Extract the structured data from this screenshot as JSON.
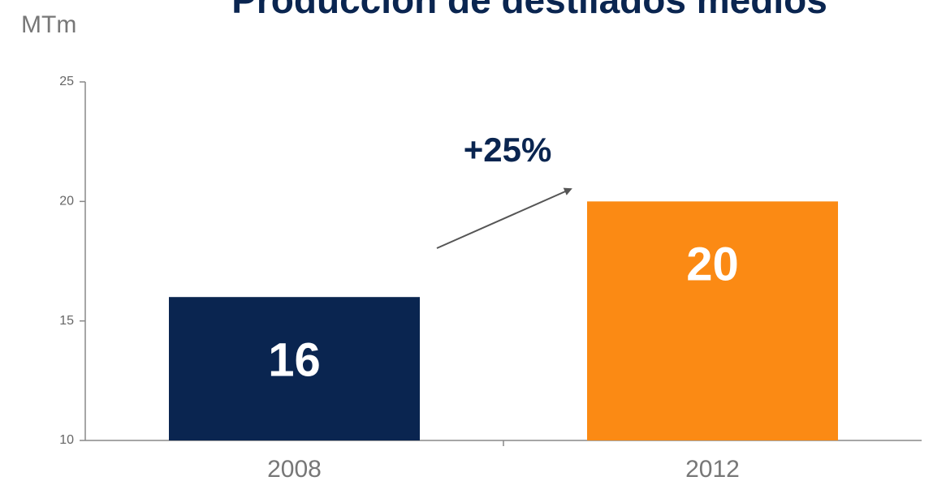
{
  "chart_data": {
    "type": "bar",
    "title": "Producción de destilados medios",
    "y_label": "MTm",
    "categories": [
      "2008",
      "2012"
    ],
    "values": [
      16,
      20
    ],
    "colors": [
      "#0a2550",
      "#fb8a14"
    ],
    "ylim": [
      10,
      25
    ],
    "yticks": [
      10,
      15,
      20,
      25
    ],
    "annotation": "+25%"
  }
}
